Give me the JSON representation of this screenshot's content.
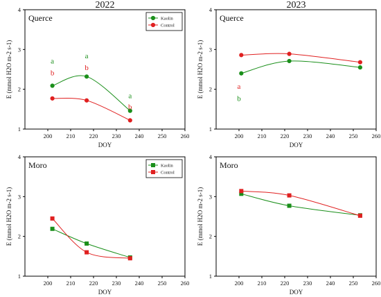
{
  "colors": {
    "kaolin": "#1a8f1a",
    "control": "#e02020",
    "axis": "#000000"
  },
  "chart_data": [
    {
      "type": "scatter",
      "col_title": "2022",
      "panel_label": "Querce",
      "xlabel": "DOY",
      "ylabel": "E (mmol H2O m-2 s-1)",
      "xlim": [
        190,
        260
      ],
      "ylim": [
        1,
        4
      ],
      "xticks": [
        "200",
        "210",
        "220",
        "230",
        "240",
        "250",
        "260"
      ],
      "yticks": [
        "1",
        "2",
        "3",
        "4"
      ],
      "marker": "circle",
      "legend": {
        "show": true,
        "position": "top-right"
      },
      "series": [
        {
          "name": "Kaolin",
          "color": "#1a8f1a",
          "x": [
            202,
            217,
            236
          ],
          "y": [
            2.09,
            2.32,
            1.46
          ]
        },
        {
          "name": "Control",
          "color": "#e02020",
          "x": [
            202,
            217,
            236
          ],
          "y": [
            1.77,
            1.72,
            1.22
          ]
        }
      ],
      "annotations": [
        {
          "text": "a",
          "x": 202,
          "y": 2.72,
          "color": "#1a8f1a"
        },
        {
          "text": "b",
          "x": 202,
          "y": 2.42,
          "color": "#e02020"
        },
        {
          "text": "a",
          "x": 217,
          "y": 2.85,
          "color": "#1a8f1a"
        },
        {
          "text": "b",
          "x": 217,
          "y": 2.55,
          "color": "#e02020"
        },
        {
          "text": "a",
          "x": 236,
          "y": 1.85,
          "color": "#1a8f1a"
        },
        {
          "text": "b",
          "x": 236,
          "y": 1.57,
          "color": "#e02020"
        }
      ]
    },
    {
      "type": "scatter",
      "col_title": "2023",
      "panel_label": "Querce",
      "xlabel": "DOY",
      "ylabel": "E (mmol H2O m-2 s-1)",
      "xlim": [
        190,
        260
      ],
      "ylim": [
        1,
        4
      ],
      "xticks": [
        "200",
        "210",
        "220",
        "230",
        "240",
        "250",
        "260"
      ],
      "yticks": [
        "1",
        "2",
        "3",
        "4"
      ],
      "marker": "circle",
      "legend": {
        "show": false
      },
      "series": [
        {
          "name": "Kaolin",
          "color": "#1a8f1a",
          "x": [
            201,
            222,
            253
          ],
          "y": [
            2.4,
            2.71,
            2.55
          ]
        },
        {
          "name": "Control",
          "color": "#e02020",
          "x": [
            201,
            222,
            253
          ],
          "y": [
            2.86,
            2.89,
            2.68
          ]
        }
      ],
      "annotations": [
        {
          "text": "a",
          "x": 200,
          "y": 2.08,
          "color": "#e02020"
        },
        {
          "text": "b",
          "x": 200,
          "y": 1.78,
          "color": "#1a8f1a"
        }
      ]
    },
    {
      "type": "scatter",
      "col_title": "",
      "panel_label": "Moro",
      "xlabel": "DOY",
      "ylabel": "E (mmol H2O m-2 s-1)",
      "xlim": [
        190,
        260
      ],
      "ylim": [
        1,
        4
      ],
      "xticks": [
        "200",
        "210",
        "220",
        "230",
        "240",
        "250",
        "260"
      ],
      "yticks": [
        "1",
        "2",
        "3",
        "4"
      ],
      "marker": "square",
      "legend": {
        "show": true,
        "position": "top-right"
      },
      "series": [
        {
          "name": "Kaolin",
          "color": "#1a8f1a",
          "x": [
            202,
            217,
            236
          ],
          "y": [
            2.19,
            1.82,
            1.47
          ]
        },
        {
          "name": "Control",
          "color": "#e02020",
          "x": [
            202,
            217,
            236
          ],
          "y": [
            2.45,
            1.6,
            1.45
          ]
        }
      ],
      "annotations": []
    },
    {
      "type": "scatter",
      "col_title": "",
      "panel_label": "Moro",
      "xlabel": "DOY",
      "ylabel": "E (mmol H2O m-2 s-1)",
      "xlim": [
        190,
        260
      ],
      "ylim": [
        1,
        4
      ],
      "xticks": [
        "200",
        "210",
        "220",
        "230",
        "240",
        "250",
        "260"
      ],
      "yticks": [
        "1",
        "2",
        "3",
        "4"
      ],
      "marker": "square",
      "legend": {
        "show": false
      },
      "series": [
        {
          "name": "Kaolin",
          "color": "#1a8f1a",
          "x": [
            201,
            222,
            253
          ],
          "y": [
            3.07,
            2.77,
            2.53
          ]
        },
        {
          "name": "Control",
          "color": "#e02020",
          "x": [
            201,
            222,
            253
          ],
          "y": [
            3.14,
            3.03,
            2.52
          ]
        }
      ],
      "annotations": []
    }
  ]
}
